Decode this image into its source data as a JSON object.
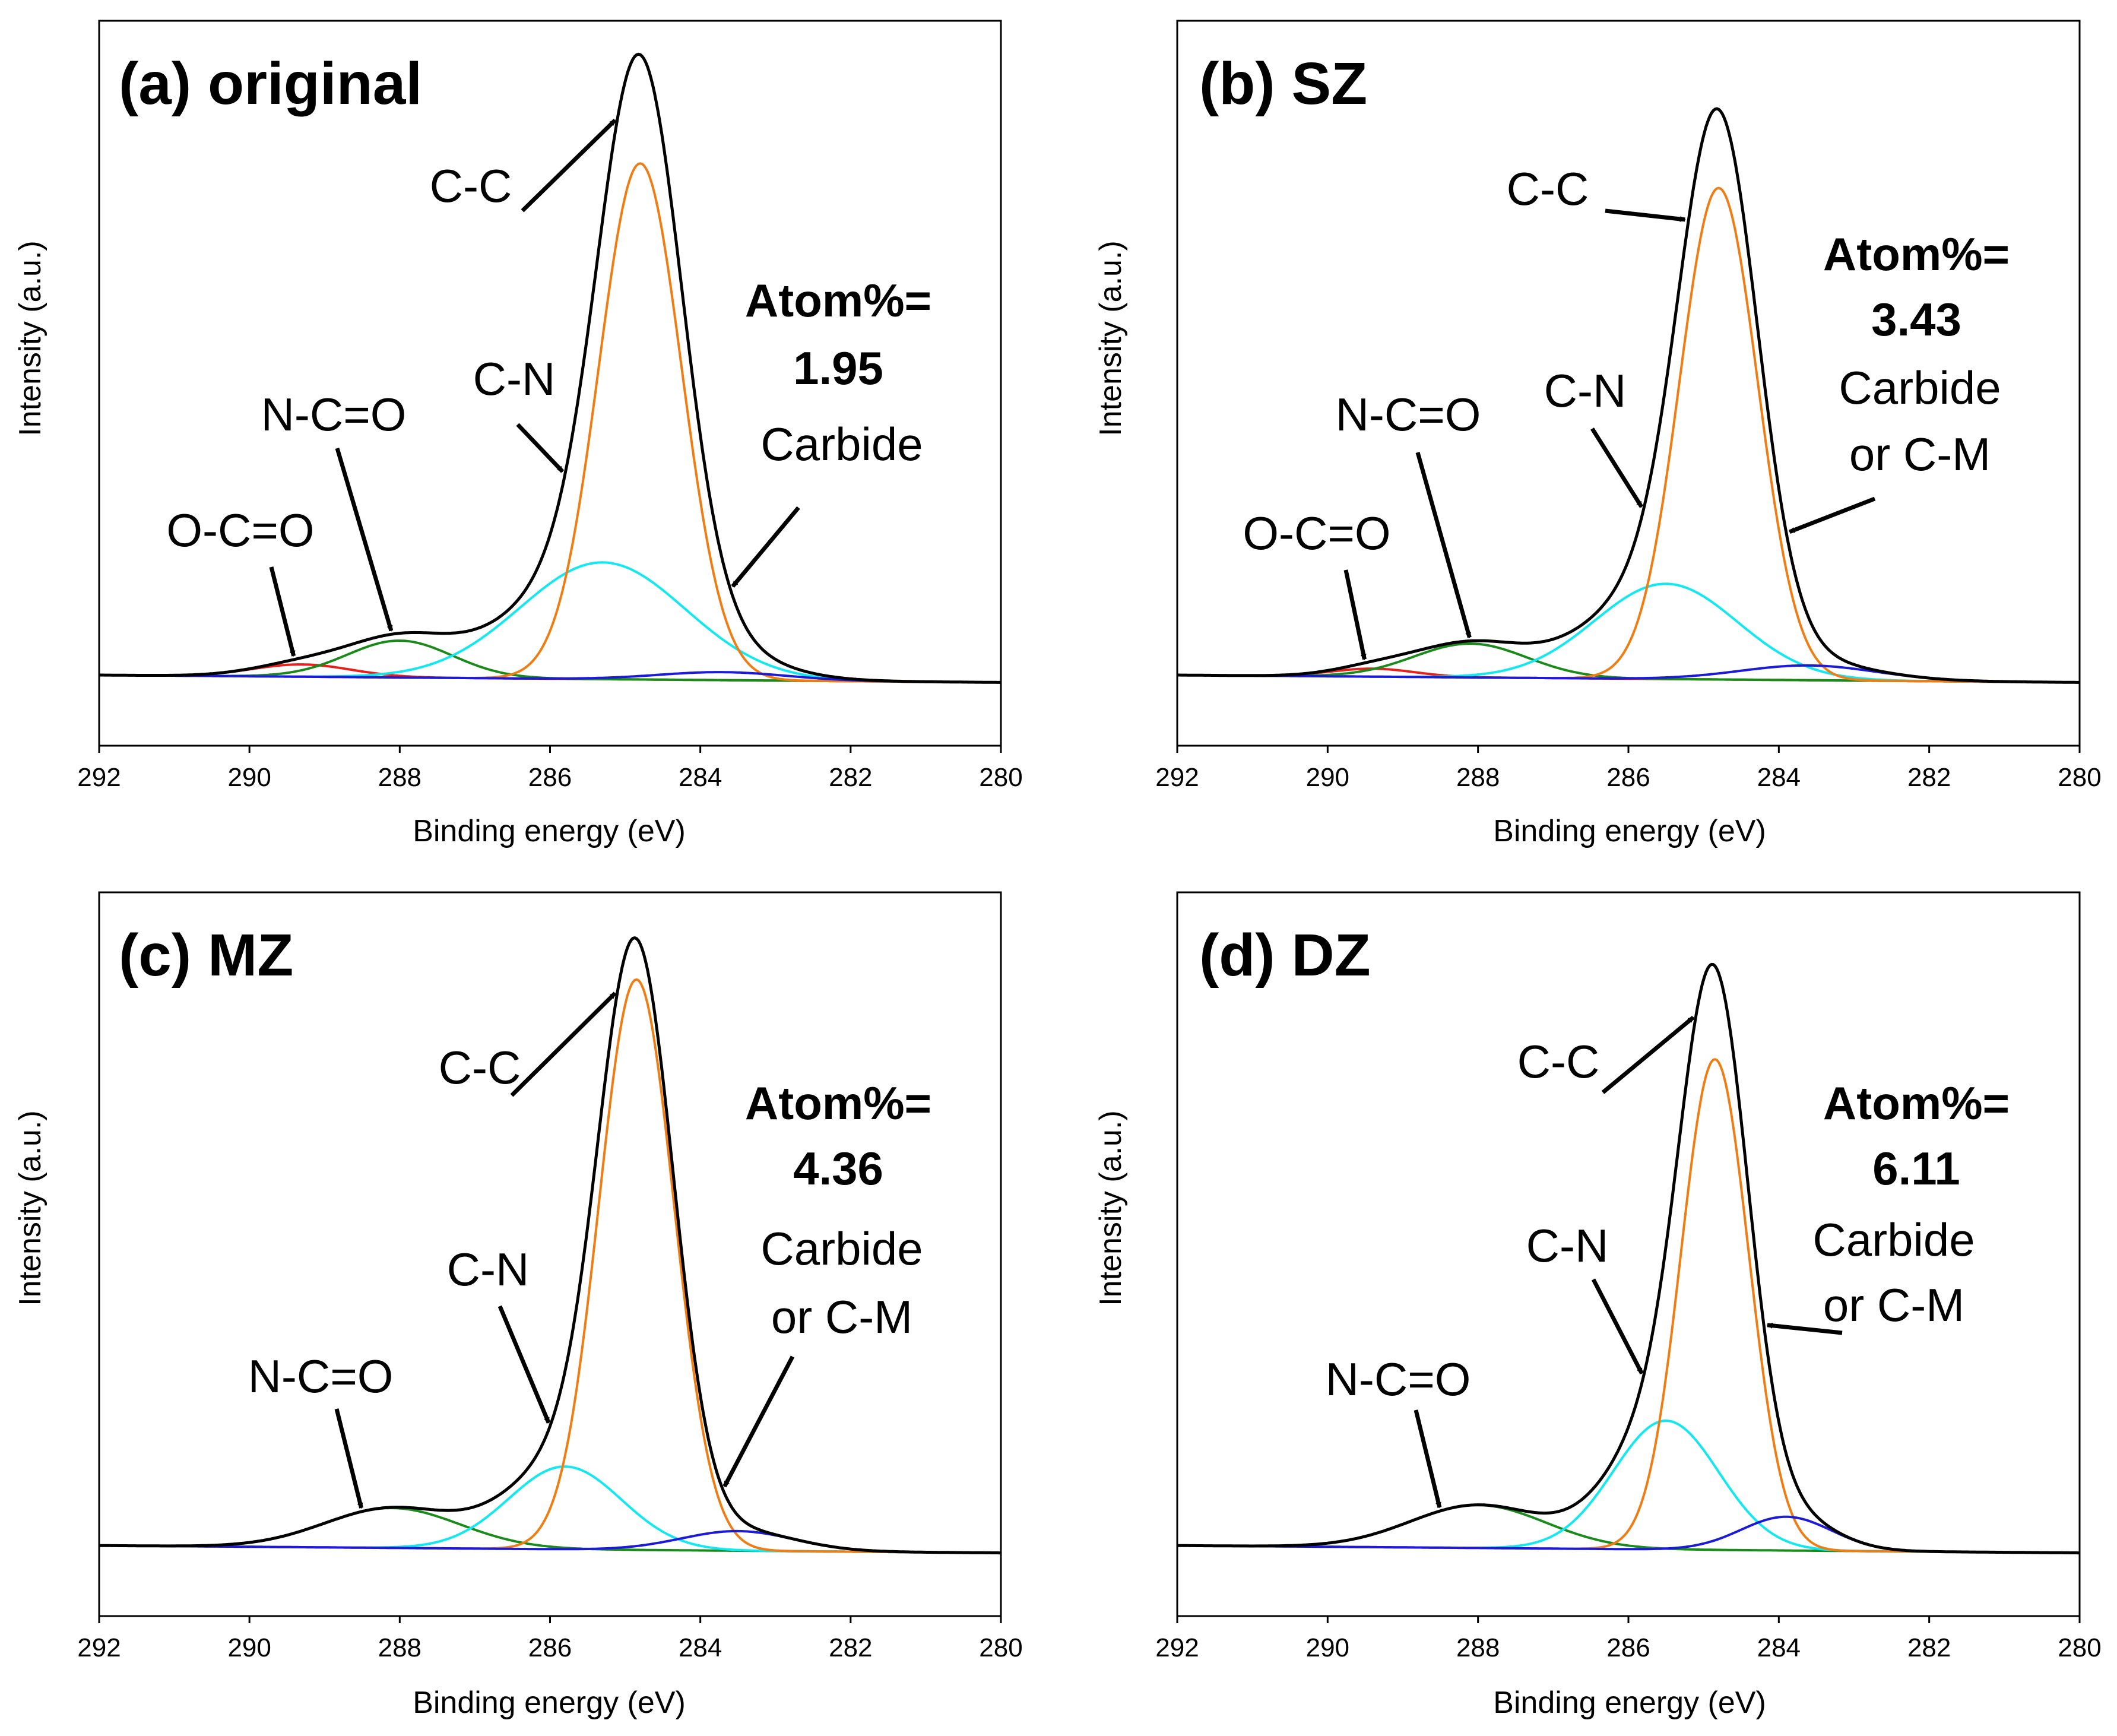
{
  "chart_data": [
    {
      "type": "line",
      "title": "(a) original",
      "xlabel": "Binding energy (eV)",
      "ylabel": "Intensity (a.u.)",
      "xlim": [
        292,
        280
      ],
      "ylim": [
        -10,
        108
      ],
      "xticks": [
        "292",
        "290",
        "288",
        "286",
        "284",
        "282",
        "280"
      ],
      "series": [
        {
          "name": "O-C=O",
          "color": "#e8201c",
          "peak": {
            "center": 289.3,
            "height": 2.0,
            "sigma": 0.65
          }
        },
        {
          "name": "N-C=O",
          "color": "#1a8a1a",
          "peak": {
            "center": 288.0,
            "height": 6.0,
            "sigma": 0.7
          }
        },
        {
          "name": "C-N",
          "color": "#11e8f0",
          "peak": {
            "center": 285.3,
            "height": 19.0,
            "sigma": 1.1
          }
        },
        {
          "name": "C-C",
          "color": "#f07d14",
          "peak": {
            "center": 284.8,
            "height": 84.0,
            "sigma": 0.55
          }
        },
        {
          "name": "Carbide",
          "color": "#1a1ad8",
          "peak": {
            "center": 283.7,
            "height": 1.3,
            "sigma": 0.85
          }
        }
      ],
      "annotations": [
        {
          "text": "C-C",
          "target": 285.1
        },
        {
          "text": "C-N",
          "target": 285.8
        },
        {
          "text": "N-C=O",
          "target": 288.1
        },
        {
          "text": "O-C=O",
          "target": 289.4
        },
        {
          "text": "Carbide",
          "target": 283.6
        }
      ],
      "atom_label": "Atom%=",
      "atom_value": "1.95",
      "carbide_label": [
        "Carbide"
      ]
    },
    {
      "type": "line",
      "title": "(b) SZ",
      "xlabel": "Binding energy (eV)",
      "ylabel": "Intensity (a.u.)",
      "xlim": [
        292,
        280
      ],
      "ylim": [
        -10,
        108
      ],
      "xticks": [
        "292",
        "290",
        "288",
        "286",
        "284",
        "282",
        "280"
      ],
      "series": [
        {
          "name": "O-C=O",
          "color": "#e8201c",
          "peak": {
            "center": 289.4,
            "height": 1.3,
            "sigma": 0.55
          }
        },
        {
          "name": "N-C=O",
          "color": "#1a8a1a",
          "peak": {
            "center": 288.1,
            "height": 5.5,
            "sigma": 0.75
          }
        },
        {
          "name": "C-N",
          "color": "#11e8f0",
          "peak": {
            "center": 285.5,
            "height": 15.5,
            "sigma": 0.95
          }
        },
        {
          "name": "C-C",
          "color": "#f07d14",
          "peak": {
            "center": 284.8,
            "height": 80.0,
            "sigma": 0.52
          }
        },
        {
          "name": "Carbide or C-M",
          "color": "#1a1ad8",
          "peak": {
            "center": 283.6,
            "height": 2.4,
            "sigma": 0.9
          }
        }
      ],
      "annotations": [
        {
          "text": "C-C",
          "target": 285.2
        },
        {
          "text": "C-N",
          "target": 285.8
        },
        {
          "text": "N-C=O",
          "target": 288.1
        },
        {
          "text": "O-C=O",
          "target": 289.5
        },
        {
          "text": "Carbide or C-M",
          "target": 283.9
        }
      ],
      "atom_label": "Atom%=",
      "atom_value": "3.43",
      "carbide_label": [
        "Carbide",
        "or C-M"
      ]
    },
    {
      "type": "line",
      "title": "(c) MZ",
      "xlabel": "Binding energy (eV)",
      "ylabel": "Intensity (a.u.)",
      "xlim": [
        292,
        280
      ],
      "ylim": [
        -10,
        108
      ],
      "xticks": [
        "292",
        "290",
        "288",
        "286",
        "284",
        "282",
        "280"
      ],
      "series": [
        {
          "name": "N-C=O",
          "color": "#1a8a1a",
          "peak": {
            "center": 288.1,
            "height": 6.5,
            "sigma": 0.9
          }
        },
        {
          "name": "C-N",
          "color": "#11e8f0",
          "peak": {
            "center": 285.8,
            "height": 13.5,
            "sigma": 0.75
          }
        },
        {
          "name": "C-C",
          "color": "#f07d14",
          "peak": {
            "center": 284.85,
            "height": 93.0,
            "sigma": 0.5
          }
        },
        {
          "name": "Carbide or C-M",
          "color": "#1a1ad8",
          "peak": {
            "center": 283.5,
            "height": 3.2,
            "sigma": 0.75
          }
        }
      ],
      "annotations": [
        {
          "text": "C-C",
          "target": 285.1
        },
        {
          "text": "C-N",
          "target": 286.0
        },
        {
          "text": "N-C=O",
          "target": 288.5
        },
        {
          "text": "Carbide or C-M",
          "target": 283.7
        }
      ],
      "atom_label": "Atom%=",
      "atom_value": "4.36",
      "carbide_label": [
        "Carbide",
        "or C-M"
      ]
    },
    {
      "type": "line",
      "title": "(d) DZ",
      "xlabel": "Binding energy (eV)",
      "ylabel": "Intensity (a.u.)",
      "xlim": [
        292,
        280
      ],
      "ylim": [
        -10,
        108
      ],
      "xticks": [
        "292",
        "290",
        "288",
        "286",
        "284",
        "282",
        "280"
      ],
      "series": [
        {
          "name": "N-C=O",
          "color": "#1a8a1a",
          "peak": {
            "center": 288.0,
            "height": 7.0,
            "sigma": 0.9
          }
        },
        {
          "name": "C-N",
          "color": "#11e8f0",
          "peak": {
            "center": 285.5,
            "height": 21.0,
            "sigma": 0.7
          }
        },
        {
          "name": "C-C",
          "color": "#f07d14",
          "peak": {
            "center": 284.85,
            "height": 80.0,
            "sigma": 0.45
          }
        },
        {
          "name": "Carbide or C-M",
          "color": "#1a1ad8",
          "peak": {
            "center": 283.9,
            "height": 5.5,
            "sigma": 0.6
          }
        }
      ],
      "annotations": [
        {
          "text": "C-C",
          "target": 285.1
        },
        {
          "text": "C-N",
          "target": 285.8
        },
        {
          "text": "N-C=O",
          "target": 288.5
        },
        {
          "text": "Carbide or C-M",
          "target": 284.2
        }
      ],
      "atom_label": "Atom%=",
      "atom_value": "6.11",
      "carbide_label": [
        "Carbide",
        "or C-M"
      ]
    }
  ]
}
